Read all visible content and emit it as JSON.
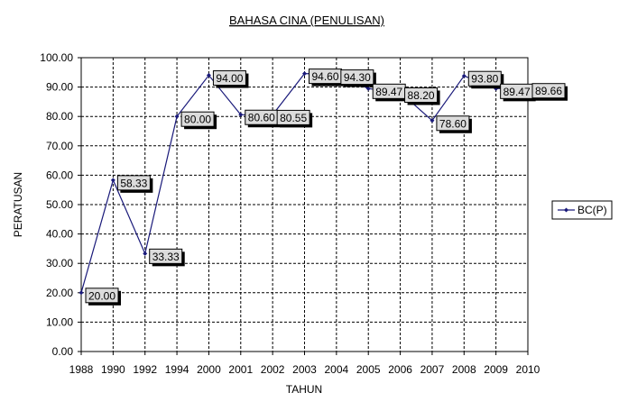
{
  "chart_data": {
    "type": "line",
    "title": "BAHASA CINA (PENULISAN)",
    "xlabel": "TAHUN",
    "ylabel": "PERATUSAN",
    "categories": [
      "1988",
      "1990",
      "1992",
      "1994",
      "2000",
      "2001",
      "2002",
      "2003",
      "2004",
      "2005",
      "2006",
      "2007",
      "2008",
      "2009",
      "2010"
    ],
    "series": [
      {
        "name": "BC(P)",
        "values": [
          20.0,
          58.33,
          33.33,
          80.0,
          94.0,
          80.6,
          80.55,
          94.6,
          94.3,
          89.47,
          88.2,
          78.6,
          93.8,
          89.47,
          89.66
        ],
        "labels": [
          "20.00",
          "58.33",
          "33.33",
          "80.00",
          "94.00",
          "80.60",
          "80.55",
          "94.60",
          "94.30",
          "89.47",
          "88.20",
          "78.60",
          "93.80",
          "89.47",
          "89.66"
        ]
      }
    ],
    "ylim": [
      0,
      100
    ],
    "yticks": [
      "0.00",
      "10.00",
      "20.00",
      "30.00",
      "40.00",
      "50.00",
      "60.00",
      "70.00",
      "80.00",
      "90.00",
      "100.00"
    ],
    "grid": true,
    "legend_position": "right",
    "colors": {
      "series": "#1a1a7a",
      "grid": "#000000",
      "label_bg": "#dcdcdc",
      "label_shadow": "#000000"
    }
  }
}
